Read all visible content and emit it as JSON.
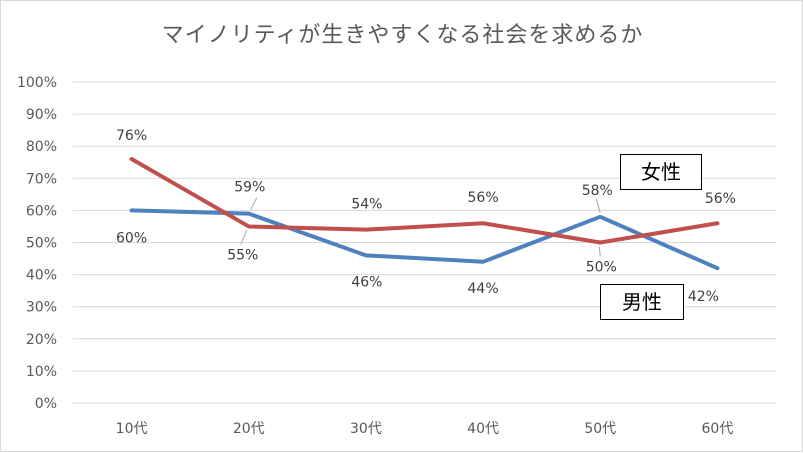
{
  "chart_data": {
    "type": "line",
    "title": "マイノリティが生きやすくなる社会を求めるか",
    "categories": [
      "10代",
      "20代",
      "30代",
      "40代",
      "50代",
      "60代"
    ],
    "y_tick_labels": [
      "0%",
      "10%",
      "20%",
      "30%",
      "40%",
      "50%",
      "60%",
      "70%",
      "80%",
      "90%",
      "100%"
    ],
    "ylim": [
      0,
      100
    ],
    "grid": true,
    "series": [
      {
        "name": "男性",
        "color": "#4f81bd",
        "values": [
          60,
          59,
          46,
          44,
          58,
          42
        ],
        "labels": [
          "60%",
          "59%",
          "46%",
          "44%",
          "58%",
          "42%"
        ]
      },
      {
        "name": "女性",
        "color": "#c0504d",
        "values": [
          76,
          55,
          54,
          56,
          50,
          56
        ],
        "labels": [
          "76%",
          "55%",
          "54%",
          "56%",
          "50%",
          "56%"
        ]
      }
    ]
  }
}
